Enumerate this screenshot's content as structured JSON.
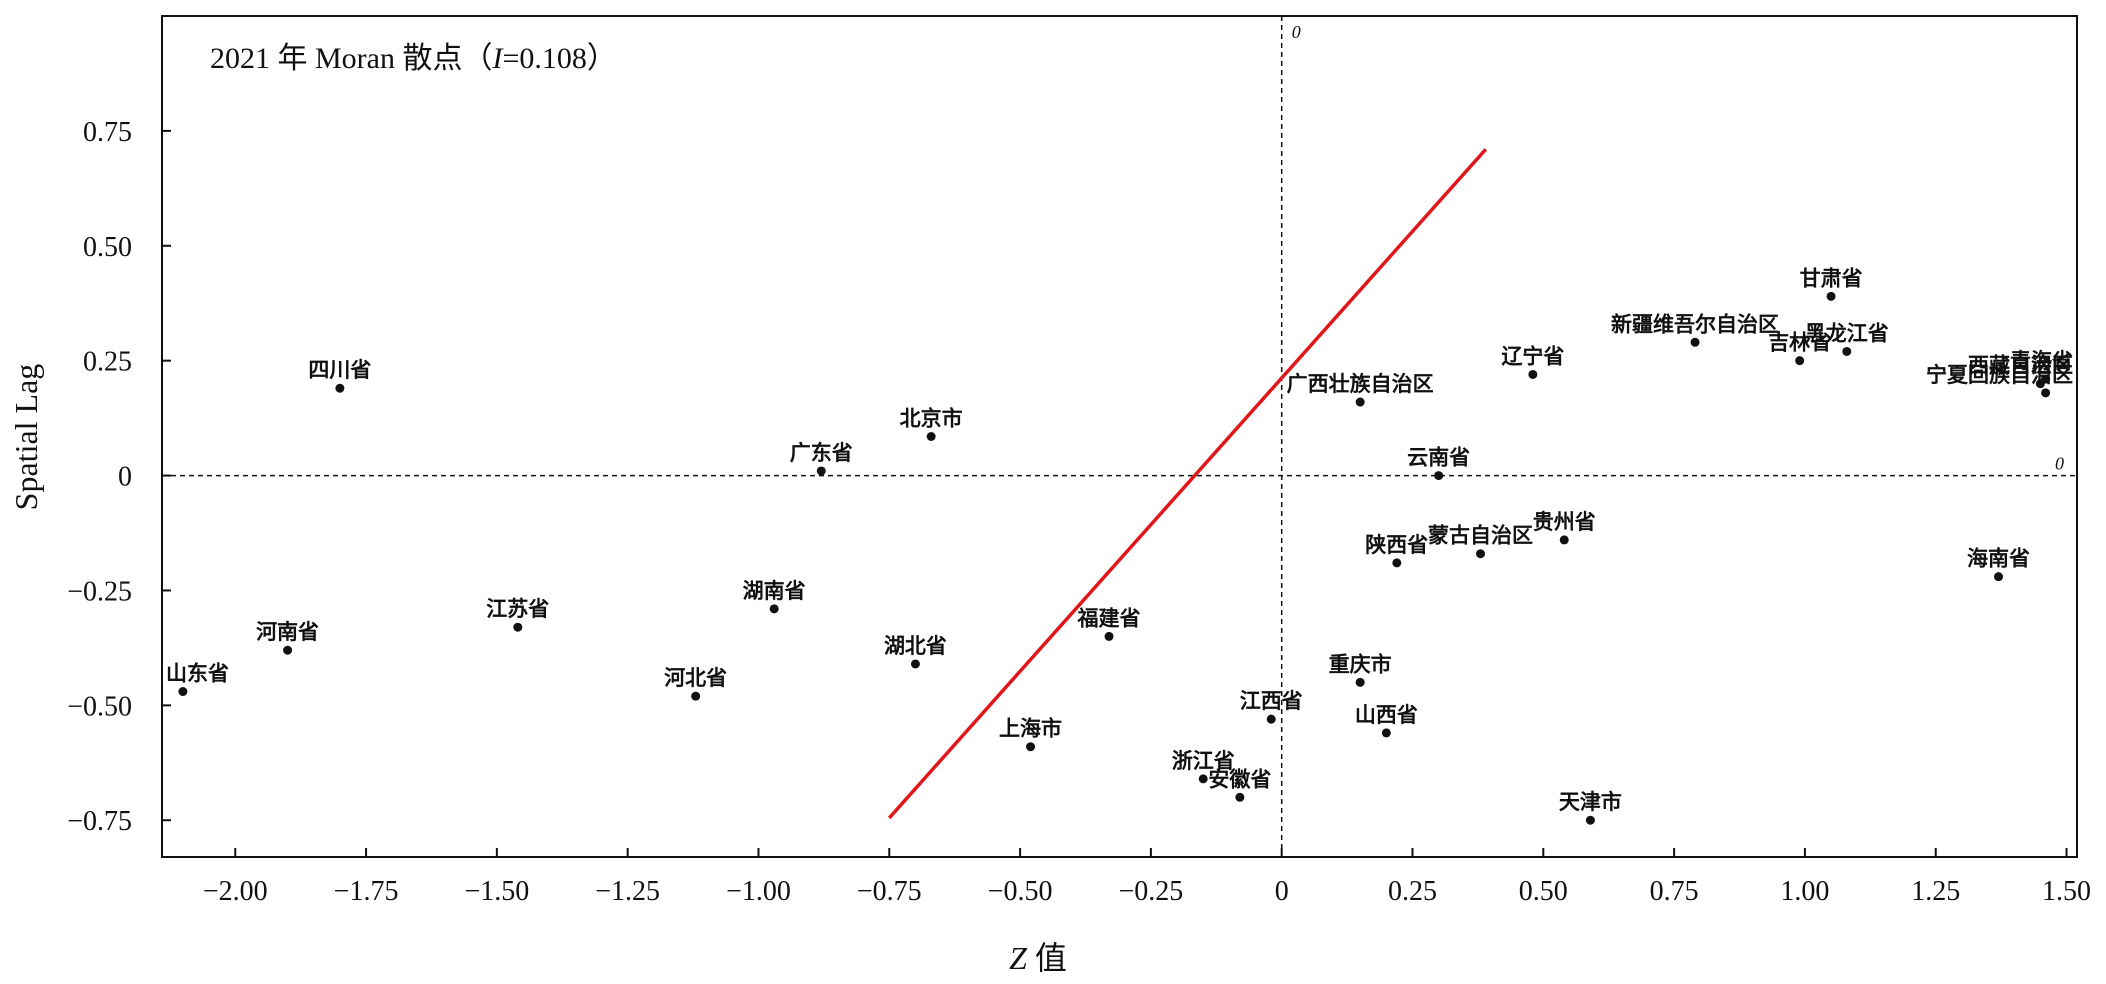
{
  "chart_data": {
    "type": "scatter",
    "title": "2021 年 Moran 散点（",
    "title_stat_symbol": "I",
    "title_stat_value": "=0.108）",
    "xlabel_italic": "Z",
    "xlabel_rest": " 值",
    "ylabel": "Spatial Lag",
    "xlim": [
      -2.14,
      1.52
    ],
    "ylim": [
      -0.83,
      1.0
    ],
    "x_ticks": [
      {
        "v": -2.0,
        "label": "−2.00"
      },
      {
        "v": -1.75,
        "label": "−1.75"
      },
      {
        "v": -1.5,
        "label": "−1.50"
      },
      {
        "v": -1.25,
        "label": "−1.25"
      },
      {
        "v": -1.0,
        "label": "−1.00"
      },
      {
        "v": -0.75,
        "label": "−0.75"
      },
      {
        "v": -0.5,
        "label": "−0.50"
      },
      {
        "v": -0.25,
        "label": "−0.25"
      },
      {
        "v": 0,
        "label": "0"
      },
      {
        "v": 0.25,
        "label": "0.25"
      },
      {
        "v": 0.5,
        "label": "0.50"
      },
      {
        "v": 0.75,
        "label": "0.75"
      },
      {
        "v": 1.0,
        "label": "1.00"
      },
      {
        "v": 1.25,
        "label": "1.25"
      },
      {
        "v": 1.5,
        "label": "1.50"
      }
    ],
    "y_ticks": [
      {
        "v": 0.75,
        "label": "0.75"
      },
      {
        "v": 0.5,
        "label": "0.50"
      },
      {
        "v": 0.25,
        "label": "0.25"
      },
      {
        "v": 0,
        "label": "0"
      },
      {
        "v": -0.25,
        "label": "−0.25"
      },
      {
        "v": -0.5,
        "label": "−0.50"
      },
      {
        "v": -0.75,
        "label": "−0.75"
      }
    ],
    "zero_line_label": "0",
    "fit_line": {
      "x1": -0.75,
      "y1": -0.745,
      "x2": 0.39,
      "y2": 0.71,
      "color": "#e0161b"
    },
    "point_color": "#111111",
    "points": [
      {
        "name": "山东省",
        "x": -2.1,
        "y": -0.47
      },
      {
        "name": "河南省",
        "x": -1.9,
        "y": -0.38
      },
      {
        "name": "四川省",
        "x": -1.8,
        "y": 0.19
      },
      {
        "name": "江苏省",
        "x": -1.46,
        "y": -0.33
      },
      {
        "name": "河北省",
        "x": -1.12,
        "y": -0.48
      },
      {
        "name": "湖南省",
        "x": -0.97,
        "y": -0.29
      },
      {
        "name": "广东省",
        "x": -0.88,
        "y": 0.01
      },
      {
        "name": "湖北省",
        "x": -0.7,
        "y": -0.41
      },
      {
        "name": "北京市",
        "x": -0.67,
        "y": 0.085
      },
      {
        "name": "上海市",
        "x": -0.48,
        "y": -0.59
      },
      {
        "name": "福建省",
        "x": -0.33,
        "y": -0.35
      },
      {
        "name": "浙江省",
        "x": -0.15,
        "y": -0.66
      },
      {
        "name": "安徽省",
        "x": -0.08,
        "y": -0.7
      },
      {
        "name": "江西省",
        "x": -0.02,
        "y": -0.53
      },
      {
        "name": "广西壮族自治区",
        "x": 0.15,
        "y": 0.16
      },
      {
        "name": "重庆市",
        "x": 0.15,
        "y": -0.45
      },
      {
        "name": "山西省",
        "x": 0.2,
        "y": -0.56
      },
      {
        "name": "陕西省",
        "x": 0.22,
        "y": -0.19
      },
      {
        "name": "云南省",
        "x": 0.3,
        "y": 0.0
      },
      {
        "name": "蒙古自治区",
        "x": 0.38,
        "y": -0.17
      },
      {
        "name": "辽宁省",
        "x": 0.48,
        "y": 0.22
      },
      {
        "name": "贵州省",
        "x": 0.54,
        "y": -0.14
      },
      {
        "name": "天津市",
        "x": 0.59,
        "y": -0.75
      },
      {
        "name": "新疆维吾尔自治区",
        "x": 0.79,
        "y": 0.29
      },
      {
        "name": "吉林省",
        "x": 0.99,
        "y": 0.25
      },
      {
        "name": "甘肃省",
        "x": 1.05,
        "y": 0.39
      },
      {
        "name": "黑龙江省",
        "x": 1.08,
        "y": 0.27
      },
      {
        "name": "海南省",
        "x": 1.37,
        "y": -0.22
      },
      {
        "name": "西藏自治区",
        "x": 1.45,
        "y": 0.2
      },
      {
        "name": "宁夏回族自治区",
        "x": 1.46,
        "y": 0.18
      },
      {
        "name": "青海省",
        "x": 1.46,
        "y": 0.21
      }
    ]
  }
}
